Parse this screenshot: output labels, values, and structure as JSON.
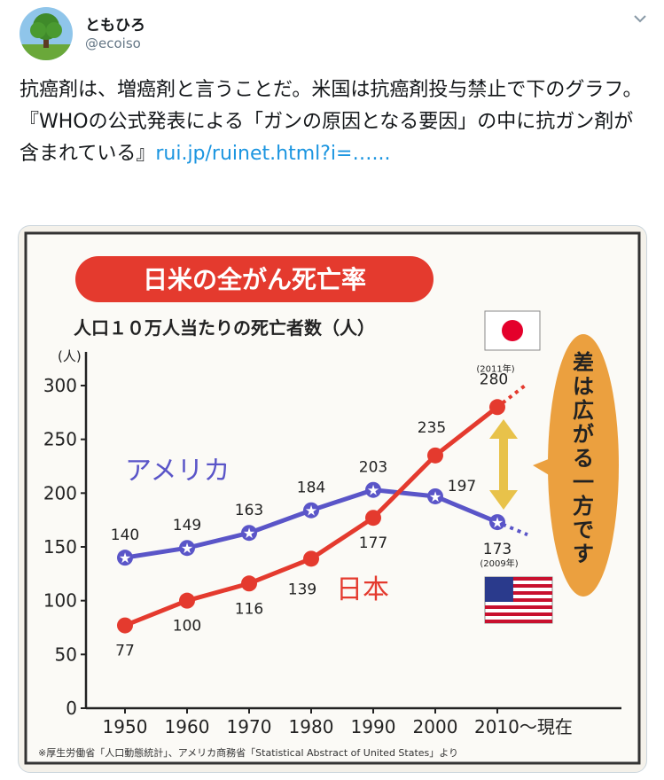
{
  "tweet": {
    "display_name": "ともひろ",
    "handle": "@ecoiso",
    "text": "抗癌剤は、増癌剤と言うことだ。米国は抗癌剤投与禁止で下のグラフ。『WHOの公式発表による「ガンの原因となる要因」の中に抗ガン剤が含まれている』",
    "link_text": "rui.jp/ruinet.html?i=…...",
    "icons": {
      "avatar": "tree-avatar",
      "menu": "chevron-down-icon"
    }
  },
  "chart_data": {
    "type": "line",
    "title": "日米の全がん死亡率",
    "subtitle": "人口１０万人当たりの死亡者数（人）",
    "ylabel": "(人)",
    "ylim": [
      0,
      300
    ],
    "yticks": [
      "0",
      "50",
      "100",
      "150",
      "200",
      "250",
      "300"
    ],
    "categories": [
      "1950",
      "1960",
      "1970",
      "1980",
      "1990",
      "2000",
      "2010〜現在"
    ],
    "series": [
      {
        "name": "アメリカ",
        "color": "#5a55c8",
        "values": [
          140,
          149,
          163,
          184,
          203,
          197,
          173
        ]
      },
      {
        "name": "日本",
        "color": "#e43a2e",
        "values": [
          77,
          100,
          116,
          139,
          177,
          235,
          280
        ]
      }
    ],
    "annotations": {
      "japan_year": "(2011年)",
      "us_year": "(2009年)",
      "gap_text": "差は広がる一方です"
    },
    "source": "※厚生労働省「人口動態統計」、アメリカ商務省「Statistical Abstract of United States」より",
    "colors": {
      "title_red": "#e43a2e",
      "callout_orange": "#eba03f",
      "arrow_yellow": "#e8c24a"
    }
  }
}
